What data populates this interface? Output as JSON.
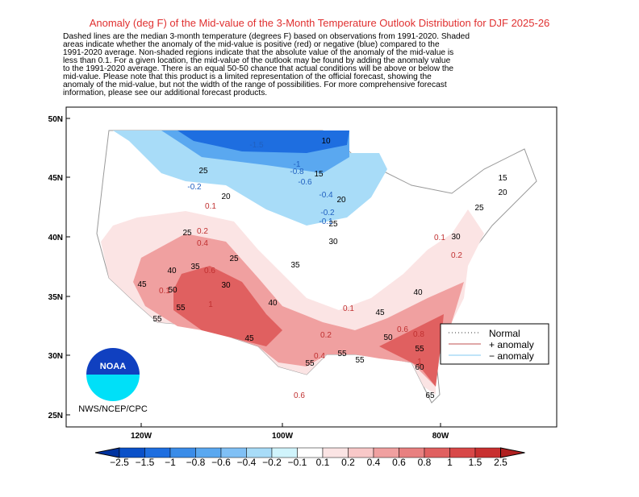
{
  "header": {
    "title": "Anomaly (deg F) of the Mid-value of the 3-Month Temperature Outlook Distribution for DJF 2025-26",
    "description": [
      "Dashed lines are the median 3-month temperature (degrees F) based on observations from 1991-2020.  Shaded",
      "areas indicate whether the anomaly of the mid-value is positive (red) or negative (blue) compared to the",
      "1991-2020 average.   Non-shaded regions indicate that the absolute value of the anomaly of the mid-value is",
      "less than 0.1.   For a given location, the mid-value of the outlook may be found by adding the anomaly value",
      "to the 1991-2020 average. There is an equal 50-50 chance that actual conditions will be above or below the",
      "mid-value. Please note that this product is a limited representation of the official forecast, showing the",
      "anomaly of the mid-value, but not the width of the range of possibilities. For more comprehensive forecast",
      "information, please see our additional forecast products."
    ]
  },
  "map": {
    "lat_labels": [
      "50N",
      "45N",
      "40N",
      "35N",
      "30N",
      "25N"
    ],
    "lon_labels": [
      "120W",
      "100W",
      "80W"
    ],
    "median_labels": [
      "10",
      "15",
      "20",
      "25",
      "30",
      "35",
      "40",
      "45",
      "50",
      "55",
      "55",
      "55",
      "25",
      "20",
      "25",
      "25",
      "35",
      "30",
      "40",
      "45",
      "50",
      "55",
      "45",
      "40",
      "25",
      "30",
      "15",
      "20",
      "55",
      "60",
      "65",
      "55"
    ],
    "positive_labels": [
      "0.1",
      "0.2",
      "0.4",
      "0.6",
      "1",
      "0.2",
      "0.1",
      "0.4",
      "0.6",
      "0.8",
      "1",
      "0.2",
      "0.1",
      "0.1",
      "0.6"
    ],
    "negative_labels": [
      "-1.5",
      "-1",
      "-0.8",
      "-0.6",
      "-0.4",
      "-0.2",
      "-0.2",
      "-0.1"
    ]
  },
  "legend": {
    "items": [
      "Normal",
      "+ anomaly",
      "− anomaly"
    ]
  },
  "logo": {
    "text": "NOAA",
    "credit": "NWS/NCEP/CPC"
  },
  "colorbar": {
    "labels": [
      "−2.5",
      "−1.5",
      "−1",
      "−0.8",
      "−0.6",
      "−0.4",
      "−0.2",
      "−0.1",
      "0.1",
      "0.2",
      "0.4",
      "0.6",
      "0.8",
      "1",
      "1.5",
      "2.5"
    ],
    "colors": [
      "#0033a0",
      "#0a50c8",
      "#1e6ee0",
      "#3a8ce8",
      "#5aa8f0",
      "#80c0f5",
      "#a8dcf8",
      "#d0f4fc",
      "#ffffff",
      "#fbe4e4",
      "#f8c8c8",
      "#f0a0a0",
      "#e88080",
      "#e06060",
      "#d84848",
      "#c83030",
      "#b02020"
    ]
  }
}
